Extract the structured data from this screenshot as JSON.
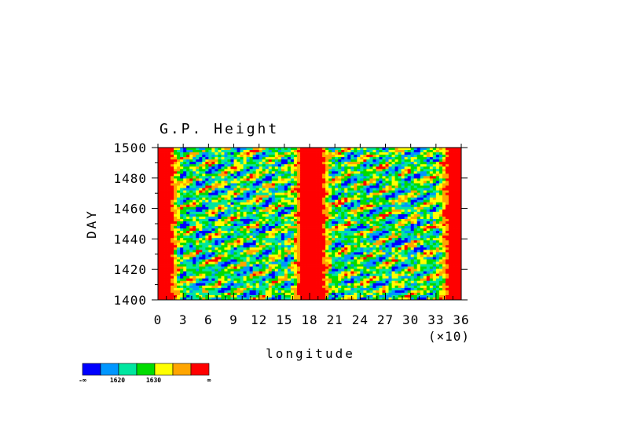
{
  "chart_data": {
    "type": "heatmap",
    "title": "G.P. Height",
    "xlabel": "longitude",
    "ylabel": "DAY",
    "x_multiplier_label": "(×10)",
    "xlim": [
      0,
      36
    ],
    "ylim": [
      1400,
      1500
    ],
    "x_ticks": [
      0,
      3,
      6,
      9,
      12,
      15,
      18,
      21,
      24,
      27,
      30,
      33,
      36
    ],
    "x_tick_labels": [
      "0",
      "3",
      "6",
      "9",
      "12",
      "15",
      "18",
      "21",
      "24",
      "27",
      "30",
      "33",
      "36"
    ],
    "y_ticks": [
      1400,
      1420,
      1440,
      1460,
      1480,
      1500
    ],
    "y_tick_labels": [
      "1400",
      "1420",
      "1440",
      "1460",
      "1480",
      "1500"
    ],
    "x_units_note": "longitude in units of 10 degrees",
    "colorbar": {
      "colors": [
        "#0000ff",
        "#0096ff",
        "#00e6a0",
        "#00dc00",
        "#ffff00",
        "#ffa500",
        "#ff0000"
      ],
      "tick_labels": [
        "-∞",
        "1620",
        "1630",
        "∞"
      ]
    },
    "features": [
      {
        "longitude_range": [
          0,
          1.5
        ],
        "level": "high",
        "color_index": 6
      },
      {
        "longitude_range": [
          17,
          19.5
        ],
        "level": "high",
        "color_index": 6
      },
      {
        "longitude_range": [
          34.5,
          36
        ],
        "level": "high",
        "color_index": 6
      }
    ],
    "grid": false,
    "legend": "colorbar bottom-left"
  }
}
